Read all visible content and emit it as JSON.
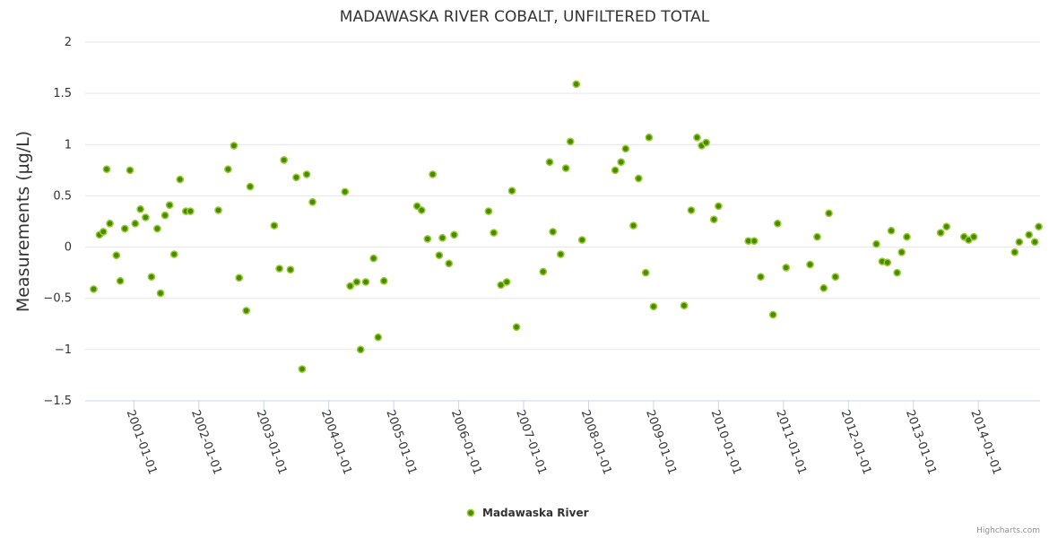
{
  "chart_data": {
    "type": "scatter",
    "title": "MADAWASKA RIVER COBALT, UNFILTERED TOTAL",
    "xlabel": "",
    "ylabel": "Measurements (µg/L)",
    "ylim": [
      -1.5,
      2
    ],
    "yticks": [
      "2",
      "1.5",
      "1",
      "0.5",
      "0",
      "−0.5",
      "−1",
      "−1.5"
    ],
    "ytick_values": [
      2,
      1.5,
      1,
      0.5,
      0,
      -0.5,
      -1,
      -1.5
    ],
    "xlim": [
      2000.25,
      2014.95
    ],
    "xticks": [
      "2001-01-01",
      "2002-01-01",
      "2003-01-01",
      "2004-01-01",
      "2005-01-01",
      "2006-01-01",
      "2007-01-01",
      "2008-01-01",
      "2009-01-01",
      "2010-01-01",
      "2011-01-01",
      "2012-01-01",
      "2013-01-01",
      "2014-01-01"
    ],
    "xtick_values": [
      2001,
      2002,
      2003,
      2004,
      2005,
      2006,
      2007,
      2008,
      2009,
      2010,
      2011,
      2012,
      2013,
      2014
    ],
    "legend": "bottom-center",
    "series": [
      {
        "name": "Madawaska River",
        "color": "#4a8a00",
        "x": [
          2000.38,
          2000.47,
          2000.53,
          2000.58,
          2000.63,
          2000.73,
          2000.79,
          2000.86,
          2000.94,
          2001.02,
          2001.1,
          2001.18,
          2001.27,
          2001.36,
          2001.41,
          2001.48,
          2001.55,
          2001.62,
          2001.71,
          2001.8,
          2001.87,
          2002.3,
          2002.45,
          2002.54,
          2002.62,
          2002.73,
          2002.79,
          2003.16,
          2003.24,
          2003.31,
          2003.41,
          2003.5,
          2003.59,
          2003.66,
          2003.75,
          2004.25,
          2004.33,
          2004.43,
          2004.49,
          2004.57,
          2004.69,
          2004.76,
          2004.85,
          2005.36,
          2005.43,
          2005.52,
          2005.6,
          2005.7,
          2005.75,
          2005.85,
          2005.93,
          2006.46,
          2006.54,
          2006.65,
          2006.74,
          2006.82,
          2006.89,
          2007.3,
          2007.4,
          2007.45,
          2007.57,
          2007.65,
          2007.72,
          2007.81,
          2007.9,
          2008.41,
          2008.5,
          2008.57,
          2008.69,
          2008.77,
          2008.88,
          2008.93,
          2009.0,
          2009.47,
          2009.58,
          2009.67,
          2009.74,
          2009.81,
          2009.93,
          2010.0,
          2010.46,
          2010.55,
          2010.65,
          2010.84,
          2010.91,
          2011.04,
          2011.41,
          2011.52,
          2011.62,
          2011.7,
          2011.8,
          2012.43,
          2012.52,
          2012.6,
          2012.66,
          2012.75,
          2012.82,
          2012.9,
          2013.42,
          2013.51,
          2013.78,
          2013.85,
          2013.93,
          2014.56,
          2014.63,
          2014.78,
          2014.87,
          2014.93
        ],
        "y": [
          -0.41,
          0.12,
          0.15,
          0.76,
          0.23,
          -0.08,
          -0.33,
          0.18,
          0.75,
          0.23,
          0.37,
          0.29,
          -0.29,
          0.18,
          -0.45,
          0.31,
          0.41,
          -0.07,
          0.66,
          0.35,
          0.35,
          0.36,
          0.76,
          0.99,
          -0.3,
          -0.62,
          0.59,
          0.21,
          -0.21,
          0.85,
          -0.22,
          0.68,
          -1.19,
          0.71,
          0.44,
          0.54,
          -0.38,
          -0.34,
          -1.0,
          -0.34,
          -0.11,
          -0.88,
          -0.33,
          0.4,
          0.36,
          0.08,
          0.71,
          -0.08,
          0.09,
          -0.16,
          0.12,
          0.35,
          0.14,
          -0.37,
          -0.34,
          0.55,
          -0.78,
          -0.24,
          0.83,
          0.15,
          -0.07,
          0.77,
          1.03,
          1.59,
          0.07,
          0.75,
          0.83,
          0.96,
          0.21,
          0.67,
          -0.25,
          1.07,
          -0.58,
          -0.57,
          0.36,
          1.07,
          0.99,
          1.02,
          0.27,
          0.4,
          0.06,
          0.06,
          -0.29,
          -0.66,
          0.23,
          -0.2,
          -0.17,
          0.1,
          -0.4,
          0.33,
          -0.29,
          0.03,
          -0.14,
          -0.15,
          0.16,
          -0.25,
          -0.05,
          0.1,
          0.14,
          0.2,
          0.1,
          0.07,
          0.1,
          -0.05,
          0.05,
          0.12,
          0.05,
          0.2
        ]
      }
    ]
  },
  "credits": "Highcharts.com"
}
